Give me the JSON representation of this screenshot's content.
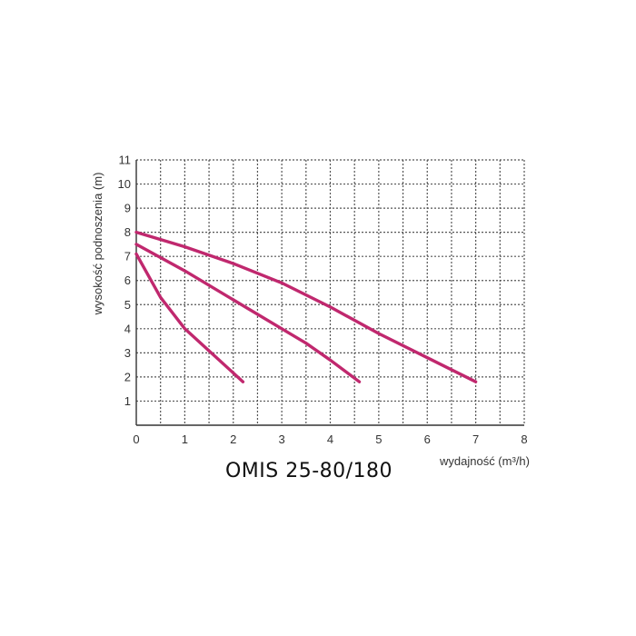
{
  "caption": "OMIS 25-80/180",
  "chart_data": {
    "type": "line",
    "xlabel": "wydajność (m³/h)",
    "ylabel": "wysokość podnoszenia (m)",
    "xlim": [
      0,
      8
    ],
    "ylim": [
      0,
      11
    ],
    "x_ticks": [
      "0",
      "1",
      "2",
      "3",
      "4",
      "5",
      "6",
      "7",
      "8"
    ],
    "y_ticks": [
      "1",
      "2",
      "3",
      "4",
      "5",
      "6",
      "7",
      "8",
      "9",
      "10",
      "11"
    ],
    "grid": true,
    "grid_style": "dotted",
    "line_color": "#c0286e",
    "series": [
      {
        "x": [
          0,
          0.5,
          1.0,
          1.6,
          2.2
        ],
        "y": [
          7.1,
          5.3,
          4.0,
          2.9,
          1.8
        ]
      },
      {
        "x": [
          0,
          1.0,
          2.0,
          3.0,
          3.5,
          4.0,
          4.6
        ],
        "y": [
          7.5,
          6.4,
          5.2,
          4.0,
          3.4,
          2.7,
          1.8
        ]
      },
      {
        "x": [
          0,
          1.0,
          2.0,
          3.0,
          4.0,
          5.0,
          6.0,
          7.0
        ],
        "y": [
          8.0,
          7.4,
          6.7,
          5.9,
          4.9,
          3.8,
          2.8,
          1.8
        ]
      }
    ]
  }
}
